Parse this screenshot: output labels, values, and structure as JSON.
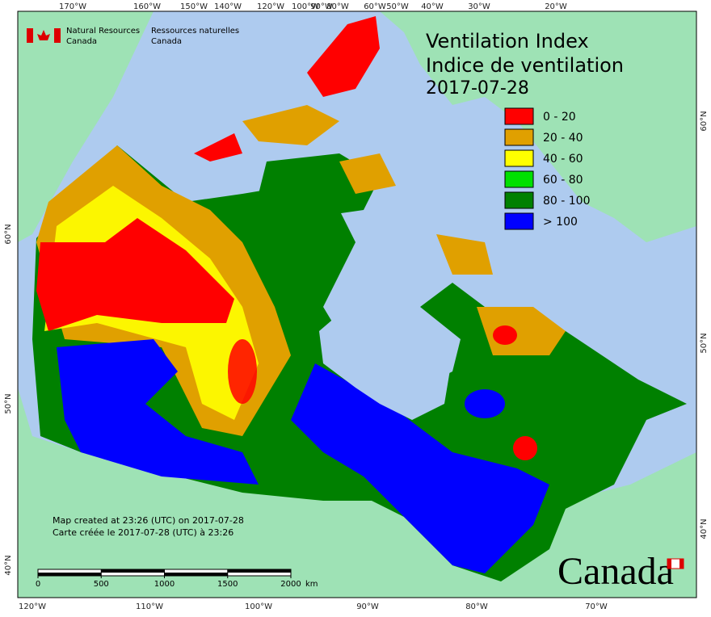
{
  "header": {
    "agency_en": "Natural Resources",
    "country_en": "Canada",
    "agency_fr": "Ressources naturelles",
    "country_fr": "Canada"
  },
  "title": {
    "line1": "Ventilation Index",
    "line2": "Indice de ventilation",
    "date": "2017-07-28"
  },
  "legend": {
    "items": [
      {
        "label": "0 - 20",
        "color": "#ff0000"
      },
      {
        "label": "20 - 40",
        "color": "#e0a000"
      },
      {
        "label": "40 - 60",
        "color": "#ffff00"
      },
      {
        "label": "60 - 80",
        "color": "#00e000"
      },
      {
        "label": "80 - 100",
        "color": "#008000"
      },
      {
        "label": "> 100",
        "color": "#0000ff"
      }
    ]
  },
  "graticule": {
    "top": [
      "170°W",
      "160°W",
      "150°W",
      "140°W",
      "120°W",
      "100°W",
      "90°W",
      "80°W",
      "60°W",
      "50°W",
      "40°W",
      "30°W",
      "20°W"
    ],
    "bottom": [
      "120°W",
      "110°W",
      "100°W",
      "90°W",
      "80°W",
      "70°W"
    ],
    "left": [
      "60°N",
      "50°N",
      "40°N"
    ],
    "right": [
      "60°N",
      "50°N",
      "40°N"
    ]
  },
  "footer": {
    "created_en": "Map created at 23:26 (UTC) on 2017-07-28",
    "created_fr": "Carte créée le 2017-07-28 (UTC) à 23:26"
  },
  "scale_bar": {
    "ticks": [
      0,
      500,
      1000,
      1500,
      2000
    ],
    "unit": "km"
  },
  "wordmark": "Canada"
}
